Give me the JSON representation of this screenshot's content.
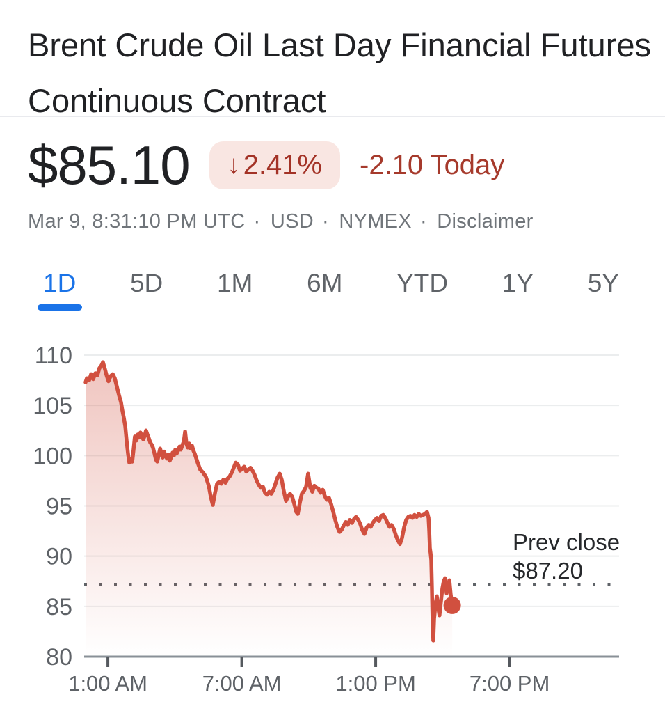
{
  "header": {
    "title": "Brent Crude Oil Last Day Financial Futures Continuous Contract"
  },
  "quote": {
    "price": "$85.10",
    "down_arrow": "↓",
    "change_percent": "2.41%",
    "change_today": "-2.10 Today",
    "meta": {
      "timestamp": "Mar 9, 8:31:10 PM UTC",
      "separator": "·",
      "currency": "USD",
      "exchange": "NYMEX",
      "disclaimer": "Disclaimer"
    }
  },
  "tabs": {
    "items": [
      "1D",
      "5D",
      "1M",
      "6M",
      "YTD",
      "1Y",
      "5Y"
    ],
    "active": "1D"
  },
  "colors": {
    "accent_blue": "#1a73e8",
    "line_red": "#d1503f",
    "badge_bg": "#f9e6e2",
    "badge_text": "#a33226",
    "change_text": "#a63a2c",
    "title_text": "#202124",
    "muted_text": "#70757a",
    "axis_text": "#5e6267",
    "grid": "#ebedee",
    "axis_line": "#899097",
    "dotted": "#5f6368",
    "prev_close_text": "#26282b",
    "divider": "#e9eaee",
    "tab_text": "#5f6368"
  },
  "chart_data": {
    "type": "area",
    "title": "Brent Crude Oil Last Day Financial Futures Continuous Contract — 1D",
    "x_unit": "hour_of_day",
    "xlim_hours": [
      0,
      24
    ],
    "ylim": [
      80,
      110
    ],
    "y_ticks": [
      80,
      85,
      90,
      95,
      100,
      105,
      110
    ],
    "x_ticks": [
      {
        "hour": 1,
        "label": "1:00 AM"
      },
      {
        "hour": 7,
        "label": "7:00 AM"
      },
      {
        "hour": 13,
        "label": "1:00 PM"
      },
      {
        "hour": 19,
        "label": "7:00 PM"
      }
    ],
    "grid": true,
    "legend": false,
    "prev_close": {
      "value": 87.2,
      "label_line1": "Prev close",
      "label_line2": "$87.20"
    },
    "last_point": {
      "hour": 16.43,
      "value": 85.1
    },
    "fill_opacity_top": 0.34,
    "fill_opacity_bottom": 0.0,
    "series": [
      {
        "name": "price",
        "points": [
          [
            0.0,
            107.3
          ],
          [
            0.06,
            107.7
          ],
          [
            0.16,
            107.5
          ],
          [
            0.25,
            108.1
          ],
          [
            0.34,
            107.6
          ],
          [
            0.44,
            108.2
          ],
          [
            0.53,
            108.0
          ],
          [
            0.62,
            108.7
          ],
          [
            0.72,
            109.0
          ],
          [
            0.78,
            109.3
          ],
          [
            0.87,
            108.6
          ],
          [
            0.94,
            108.0
          ],
          [
            1.03,
            107.4
          ],
          [
            1.12,
            107.9
          ],
          [
            1.22,
            108.1
          ],
          [
            1.31,
            107.7
          ],
          [
            1.4,
            106.9
          ],
          [
            1.5,
            106.0
          ],
          [
            1.59,
            105.3
          ],
          [
            1.65,
            104.5
          ],
          [
            1.71,
            103.8
          ],
          [
            1.78,
            102.9
          ],
          [
            1.84,
            101.5
          ],
          [
            1.9,
            100.2
          ],
          [
            1.96,
            99.3
          ],
          [
            2.03,
            99.7
          ],
          [
            2.09,
            99.4
          ],
          [
            2.15,
            100.6
          ],
          [
            2.21,
            101.9
          ],
          [
            2.28,
            101.5
          ],
          [
            2.34,
            102.1
          ],
          [
            2.4,
            101.8
          ],
          [
            2.46,
            102.3
          ],
          [
            2.52,
            101.9
          ],
          [
            2.59,
            101.6
          ],
          [
            2.65,
            102.0
          ],
          [
            2.71,
            102.5
          ],
          [
            2.77,
            102.1
          ],
          [
            2.84,
            101.7
          ],
          [
            2.9,
            101.3
          ],
          [
            2.96,
            101.1
          ],
          [
            3.02,
            100.8
          ],
          [
            3.09,
            100.2
          ],
          [
            3.15,
            99.6
          ],
          [
            3.21,
            99.4
          ],
          [
            3.27,
            100.0
          ],
          [
            3.34,
            100.7
          ],
          [
            3.4,
            100.2
          ],
          [
            3.46,
            99.8
          ],
          [
            3.52,
            100.4
          ],
          [
            3.58,
            100.0
          ],
          [
            3.65,
            99.7
          ],
          [
            3.71,
            100.1
          ],
          [
            3.77,
            99.5
          ],
          [
            3.83,
            99.8
          ],
          [
            3.9,
            100.3
          ],
          [
            3.96,
            100.0
          ],
          [
            4.02,
            100.6
          ],
          [
            4.08,
            100.2
          ],
          [
            4.15,
            100.5
          ],
          [
            4.21,
            100.9
          ],
          [
            4.27,
            100.6
          ],
          [
            4.33,
            101.0
          ],
          [
            4.4,
            101.4
          ],
          [
            4.46,
            102.4
          ],
          [
            4.52,
            101.2
          ],
          [
            4.58,
            100.8
          ],
          [
            4.64,
            101.2
          ],
          [
            4.71,
            100.7
          ],
          [
            4.77,
            101.0
          ],
          [
            4.83,
            100.5
          ],
          [
            4.89,
            100.2
          ],
          [
            5.02,
            99.3
          ],
          [
            5.14,
            98.6
          ],
          [
            5.27,
            98.3
          ],
          [
            5.39,
            97.9
          ],
          [
            5.52,
            97.0
          ],
          [
            5.61,
            95.9
          ],
          [
            5.7,
            95.1
          ],
          [
            5.8,
            96.3
          ],
          [
            5.89,
            97.2
          ],
          [
            5.99,
            97.4
          ],
          [
            6.08,
            97.2
          ],
          [
            6.17,
            97.6
          ],
          [
            6.27,
            97.3
          ],
          [
            6.36,
            97.7
          ],
          [
            6.45,
            97.9
          ],
          [
            6.55,
            98.3
          ],
          [
            6.64,
            98.8
          ],
          [
            6.73,
            99.3
          ],
          [
            6.83,
            99.1
          ],
          [
            6.92,
            98.5
          ],
          [
            7.01,
            98.7
          ],
          [
            7.11,
            98.9
          ],
          [
            7.2,
            98.4
          ],
          [
            7.29,
            98.6
          ],
          [
            7.39,
            98.8
          ],
          [
            7.48,
            98.5
          ],
          [
            7.57,
            98.1
          ],
          [
            7.67,
            97.5
          ],
          [
            7.76,
            97.1
          ],
          [
            7.85,
            96.8
          ],
          [
            7.95,
            96.9
          ],
          [
            8.04,
            96.3
          ],
          [
            8.14,
            96.1
          ],
          [
            8.23,
            96.4
          ],
          [
            8.32,
            96.2
          ],
          [
            8.42,
            96.6
          ],
          [
            8.51,
            97.2
          ],
          [
            8.6,
            97.8
          ],
          [
            8.7,
            98.2
          ],
          [
            8.79,
            97.6
          ],
          [
            8.88,
            96.5
          ],
          [
            8.98,
            95.5
          ],
          [
            9.07,
            95.9
          ],
          [
            9.16,
            96.2
          ],
          [
            9.26,
            95.9
          ],
          [
            9.35,
            95.2
          ],
          [
            9.44,
            94.4
          ],
          [
            9.51,
            94.2
          ],
          [
            9.6,
            95.3
          ],
          [
            9.69,
            96.2
          ],
          [
            9.79,
            96.5
          ],
          [
            9.88,
            96.9
          ],
          [
            9.97,
            98.2
          ],
          [
            10.07,
            96.8
          ],
          [
            10.16,
            96.4
          ],
          [
            10.25,
            97.0
          ],
          [
            10.35,
            96.8
          ],
          [
            10.44,
            96.7
          ],
          [
            10.53,
            96.3
          ],
          [
            10.63,
            96.6
          ],
          [
            10.72,
            96.0
          ],
          [
            10.81,
            95.6
          ],
          [
            10.91,
            95.8
          ],
          [
            11.0,
            95.2
          ],
          [
            11.1,
            94.4
          ],
          [
            11.19,
            93.6
          ],
          [
            11.28,
            92.9
          ],
          [
            11.38,
            92.4
          ],
          [
            11.47,
            92.6
          ],
          [
            11.56,
            93.0
          ],
          [
            11.66,
            93.4
          ],
          [
            11.75,
            93.1
          ],
          [
            11.84,
            93.6
          ],
          [
            11.94,
            93.3
          ],
          [
            12.03,
            93.7
          ],
          [
            12.12,
            93.9
          ],
          [
            12.22,
            93.6
          ],
          [
            12.31,
            93.2
          ],
          [
            12.4,
            92.6
          ],
          [
            12.5,
            92.2
          ],
          [
            12.59,
            92.8
          ],
          [
            12.69,
            93.1
          ],
          [
            12.78,
            92.9
          ],
          [
            12.87,
            93.3
          ],
          [
            12.97,
            93.6
          ],
          [
            13.06,
            93.8
          ],
          [
            13.15,
            93.5
          ],
          [
            13.25,
            94.0
          ],
          [
            13.34,
            94.1
          ],
          [
            13.43,
            93.8
          ],
          [
            13.53,
            93.3
          ],
          [
            13.62,
            92.9
          ],
          [
            13.71,
            93.1
          ],
          [
            13.81,
            92.7
          ],
          [
            13.9,
            92.1
          ],
          [
            13.99,
            91.6
          ],
          [
            14.09,
            91.2
          ],
          [
            14.18,
            91.8
          ],
          [
            14.28,
            92.9
          ],
          [
            14.37,
            93.6
          ],
          [
            14.46,
            93.9
          ],
          [
            14.56,
            94.0
          ],
          [
            14.65,
            93.8
          ],
          [
            14.74,
            94.1
          ],
          [
            14.84,
            93.9
          ],
          [
            14.93,
            94.2
          ],
          [
            15.02,
            94.0
          ],
          [
            15.12,
            94.1
          ],
          [
            15.21,
            94.2
          ],
          [
            15.3,
            94.4
          ],
          [
            15.37,
            93.8
          ],
          [
            15.4,
            92.5
          ],
          [
            15.43,
            90.8
          ],
          [
            15.46,
            90.3
          ],
          [
            15.49,
            89.6
          ],
          [
            15.52,
            87.0
          ],
          [
            15.55,
            83.5
          ],
          [
            15.58,
            81.6
          ],
          [
            15.62,
            83.8
          ],
          [
            15.68,
            85.2
          ],
          [
            15.74,
            86.0
          ],
          [
            15.8,
            84.9
          ],
          [
            15.86,
            84.1
          ],
          [
            15.93,
            85.6
          ],
          [
            15.99,
            86.8
          ],
          [
            16.05,
            87.5
          ],
          [
            16.11,
            87.8
          ],
          [
            16.18,
            86.3
          ],
          [
            16.24,
            86.9
          ],
          [
            16.3,
            87.6
          ],
          [
            16.36,
            86.2
          ],
          [
            16.43,
            85.1
          ]
        ]
      }
    ]
  }
}
